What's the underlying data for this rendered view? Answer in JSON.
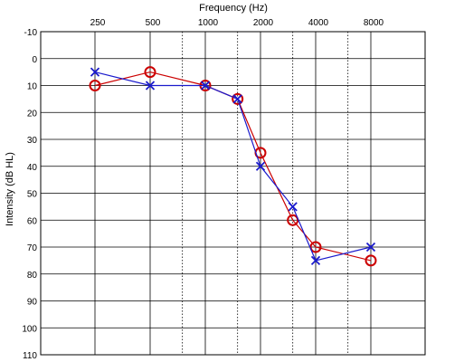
{
  "chart_data": {
    "type": "line",
    "title": "",
    "xlabel": "Frequency (Hz)",
    "ylabel": "Intensity (dB HL)",
    "x_axis_position": "top",
    "y_axis_inverted": true,
    "ylim": [
      -10,
      110
    ],
    "x_tick_labels": [
      "250",
      "500",
      "1000",
      "2000",
      "4000",
      "8000"
    ],
    "x_ticks": [
      250,
      500,
      1000,
      2000,
      4000,
      8000
    ],
    "x_half_octave_gridlines": [
      750,
      1500,
      3000,
      6000
    ],
    "y_ticks": [
      -10,
      0,
      10,
      20,
      30,
      40,
      50,
      60,
      70,
      80,
      90,
      100,
      110
    ],
    "grid": true,
    "x": [
      250,
      500,
      1000,
      1500,
      2000,
      3000,
      4000,
      8000
    ],
    "series": [
      {
        "marker": "circle",
        "color": "#cc0000",
        "values": [
          10,
          5,
          10,
          15,
          35,
          60,
          70,
          75
        ]
      },
      {
        "marker": "x",
        "color": "#1a1acc",
        "values": [
          5,
          10,
          10,
          15,
          40,
          55,
          75,
          70
        ]
      }
    ]
  }
}
